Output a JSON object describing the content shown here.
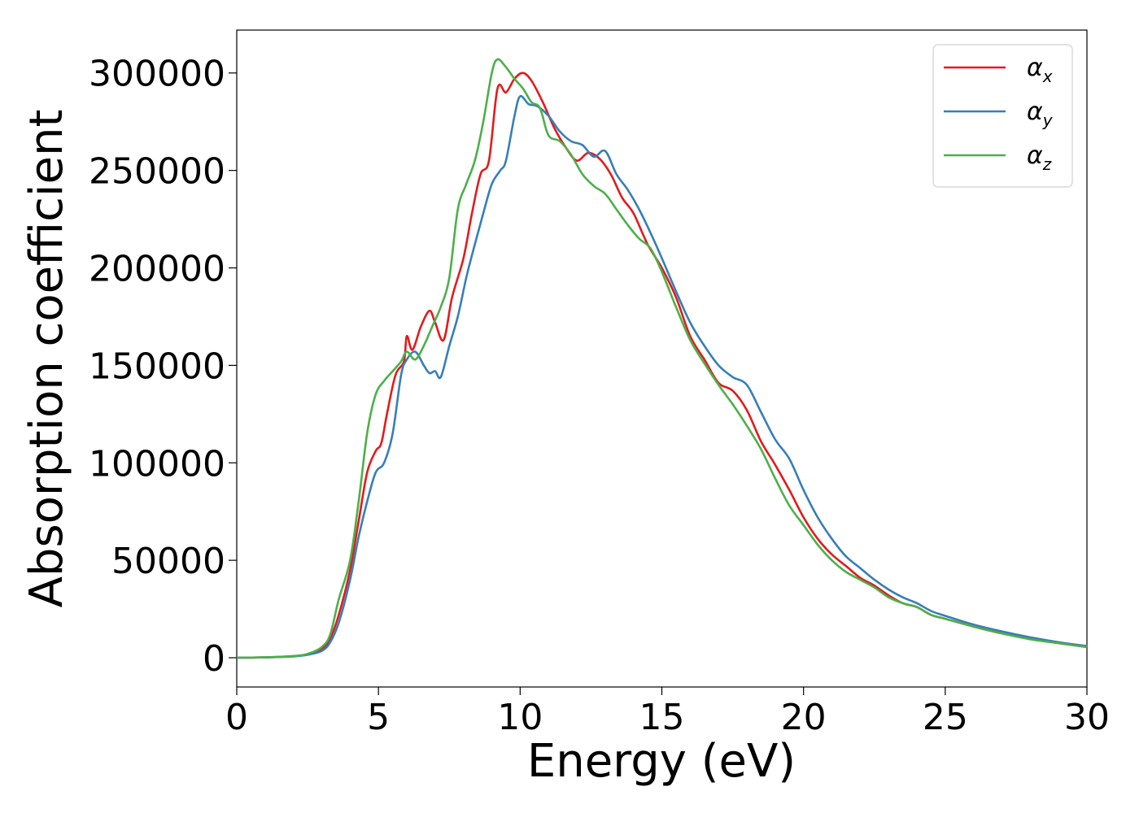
{
  "chart_data": {
    "type": "line",
    "xlabel": "Energy (eV)",
    "ylabel": "Absorption coefficient",
    "xlim": [
      0,
      30
    ],
    "ylim": [
      -15000,
      322000
    ],
    "xticks": [
      0,
      5,
      10,
      15,
      20,
      25,
      30
    ],
    "yticks": [
      0,
      50000,
      100000,
      150000,
      200000,
      250000,
      300000
    ],
    "grid": false,
    "legend_position": "top-right",
    "series": [
      {
        "name": "α",
        "subscript": "x",
        "color": "#e41a1c",
        "points": [
          [
            0,
            0
          ],
          [
            1,
            200
          ],
          [
            2,
            800
          ],
          [
            2.5,
            1800
          ],
          [
            3,
            4500
          ],
          [
            3.3,
            10000
          ],
          [
            3.6,
            22000
          ],
          [
            4,
            45000
          ],
          [
            4.3,
            70000
          ],
          [
            4.6,
            95000
          ],
          [
            4.9,
            106000
          ],
          [
            5.1,
            110000
          ],
          [
            5.3,
            125000
          ],
          [
            5.6,
            145000
          ],
          [
            5.9,
            152000
          ],
          [
            6,
            165000
          ],
          [
            6.2,
            158000
          ],
          [
            6.5,
            170000
          ],
          [
            6.8,
            178000
          ],
          [
            7,
            172000
          ],
          [
            7.3,
            163000
          ],
          [
            7.6,
            185000
          ],
          [
            8,
            205000
          ],
          [
            8.3,
            228000
          ],
          [
            8.6,
            248000
          ],
          [
            8.9,
            255000
          ],
          [
            9.2,
            292000
          ],
          [
            9.5,
            290000
          ],
          [
            9.8,
            297000
          ],
          [
            10.1,
            300000
          ],
          [
            10.4,
            296000
          ],
          [
            10.8,
            285000
          ],
          [
            11.2,
            272000
          ],
          [
            11.6,
            262000
          ],
          [
            12,
            255000
          ],
          [
            12.4,
            259000
          ],
          [
            12.8,
            256000
          ],
          [
            13.2,
            248000
          ],
          [
            13.6,
            236000
          ],
          [
            14,
            228000
          ],
          [
            14.5,
            212000
          ],
          [
            15,
            200000
          ],
          [
            15.5,
            185000
          ],
          [
            16,
            165000
          ],
          [
            16.5,
            153000
          ],
          [
            17,
            141000
          ],
          [
            17.5,
            137000
          ],
          [
            18,
            127000
          ],
          [
            18.5,
            111000
          ],
          [
            19,
            99000
          ],
          [
            19.5,
            86000
          ],
          [
            20,
            72000
          ],
          [
            20.5,
            61000
          ],
          [
            21,
            53000
          ],
          [
            21.5,
            47000
          ],
          [
            22,
            41000
          ],
          [
            22.5,
            37000
          ],
          [
            23,
            32000
          ],
          [
            23.5,
            28000
          ],
          [
            24,
            26000
          ],
          [
            24.5,
            22000
          ],
          [
            25,
            20000
          ],
          [
            26,
            16000
          ],
          [
            27,
            12500
          ],
          [
            28,
            10000
          ],
          [
            29,
            7500
          ],
          [
            30,
            5500
          ]
        ]
      },
      {
        "name": "α",
        "subscript": "y",
        "color": "#377eb8",
        "points": [
          [
            0,
            0
          ],
          [
            1,
            200
          ],
          [
            2,
            700
          ],
          [
            2.5,
            1500
          ],
          [
            3,
            3500
          ],
          [
            3.3,
            8000
          ],
          [
            3.6,
            18000
          ],
          [
            4,
            40000
          ],
          [
            4.3,
            62000
          ],
          [
            4.6,
            80000
          ],
          [
            4.9,
            95000
          ],
          [
            5.2,
            100000
          ],
          [
            5.5,
            115000
          ],
          [
            5.8,
            145000
          ],
          [
            6,
            153000
          ],
          [
            6.3,
            157000
          ],
          [
            6.6,
            150000
          ],
          [
            6.8,
            146000
          ],
          [
            7,
            147000
          ],
          [
            7.2,
            144000
          ],
          [
            7.5,
            160000
          ],
          [
            7.8,
            175000
          ],
          [
            8.1,
            195000
          ],
          [
            8.4,
            212000
          ],
          [
            8.7,
            228000
          ],
          [
            9,
            243000
          ],
          [
            9.3,
            250000
          ],
          [
            9.5,
            255000
          ],
          [
            9.8,
            278000
          ],
          [
            10,
            288000
          ],
          [
            10.3,
            284000
          ],
          [
            10.6,
            283000
          ],
          [
            11,
            278000
          ],
          [
            11.4,
            270000
          ],
          [
            11.8,
            265000
          ],
          [
            12.2,
            263000
          ],
          [
            12.6,
            257000
          ],
          [
            13,
            260000
          ],
          [
            13.4,
            248000
          ],
          [
            13.8,
            240000
          ],
          [
            14.2,
            230000
          ],
          [
            14.6,
            218000
          ],
          [
            15,
            205000
          ],
          [
            15.5,
            188000
          ],
          [
            16,
            172000
          ],
          [
            16.5,
            160000
          ],
          [
            17,
            150000
          ],
          [
            17.5,
            144000
          ],
          [
            18,
            140000
          ],
          [
            18.5,
            126000
          ],
          [
            19,
            112000
          ],
          [
            19.5,
            102000
          ],
          [
            20,
            86000
          ],
          [
            20.5,
            72000
          ],
          [
            21,
            61000
          ],
          [
            21.5,
            52000
          ],
          [
            22,
            46000
          ],
          [
            22.5,
            40000
          ],
          [
            23,
            35000
          ],
          [
            23.5,
            31000
          ],
          [
            24,
            28000
          ],
          [
            24.5,
            24000
          ],
          [
            25,
            21500
          ],
          [
            26,
            17000
          ],
          [
            27,
            13500
          ],
          [
            28,
            10500
          ],
          [
            29,
            8000
          ],
          [
            30,
            6000
          ]
        ]
      },
      {
        "name": "α",
        "subscript": "z",
        "color": "#4daf4a",
        "points": [
          [
            0,
            0
          ],
          [
            1,
            200
          ],
          [
            2,
            900
          ],
          [
            2.5,
            2000
          ],
          [
            3,
            5500
          ],
          [
            3.3,
            12000
          ],
          [
            3.6,
            30000
          ],
          [
            4,
            50000
          ],
          [
            4.3,
            80000
          ],
          [
            4.6,
            115000
          ],
          [
            4.9,
            135000
          ],
          [
            5.2,
            142000
          ],
          [
            5.5,
            147000
          ],
          [
            5.8,
            152000
          ],
          [
            6,
            157000
          ],
          [
            6.3,
            153000
          ],
          [
            6.6,
            160000
          ],
          [
            6.9,
            170000
          ],
          [
            7.2,
            180000
          ],
          [
            7.5,
            195000
          ],
          [
            7.8,
            230000
          ],
          [
            8.1,
            243000
          ],
          [
            8.4,
            255000
          ],
          [
            8.7,
            275000
          ],
          [
            9,
            300000
          ],
          [
            9.2,
            307000
          ],
          [
            9.5,
            303000
          ],
          [
            9.8,
            297000
          ],
          [
            10.1,
            292000
          ],
          [
            10.4,
            285000
          ],
          [
            10.7,
            282000
          ],
          [
            11,
            268000
          ],
          [
            11.4,
            265000
          ],
          [
            11.8,
            258000
          ],
          [
            12.2,
            248000
          ],
          [
            12.6,
            242000
          ],
          [
            13,
            238000
          ],
          [
            13.4,
            230000
          ],
          [
            13.8,
            222000
          ],
          [
            14.2,
            215000
          ],
          [
            14.6,
            210000
          ],
          [
            15,
            198000
          ],
          [
            15.5,
            180000
          ],
          [
            16,
            163000
          ],
          [
            16.5,
            151000
          ],
          [
            17,
            140000
          ],
          [
            17.5,
            130000
          ],
          [
            18,
            119000
          ],
          [
            18.5,
            107000
          ],
          [
            19,
            92000
          ],
          [
            19.5,
            78000
          ],
          [
            20,
            68000
          ],
          [
            20.5,
            58000
          ],
          [
            21,
            50000
          ],
          [
            21.5,
            44000
          ],
          [
            22,
            40000
          ],
          [
            22.5,
            36000
          ],
          [
            23,
            31000
          ],
          [
            23.5,
            28000
          ],
          [
            24,
            26000
          ],
          [
            24.5,
            22000
          ],
          [
            25,
            20000
          ],
          [
            26,
            16000
          ],
          [
            27,
            12500
          ],
          [
            28,
            9500
          ],
          [
            29,
            7500
          ],
          [
            30,
            5500
          ]
        ]
      }
    ]
  }
}
